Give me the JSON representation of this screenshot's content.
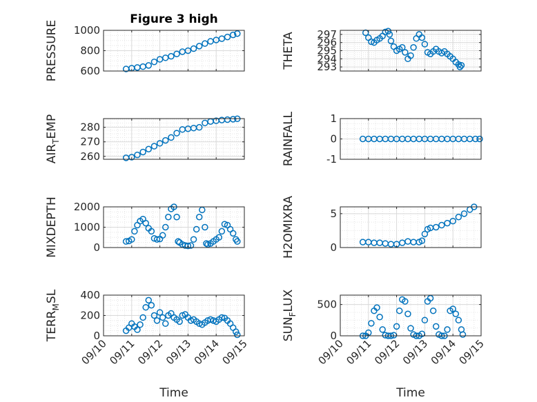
{
  "colors": {
    "marker": "#0072BD",
    "axes": "#262626",
    "grid": "#d9d9d9"
  },
  "chart_data": {
    "type": "scatter",
    "figure_title": "Figure 3 high",
    "x_axis": {
      "label": "Time",
      "range": [
        0,
        5
      ],
      "ticks": [
        0,
        1,
        2,
        3,
        4,
        5
      ],
      "tick_labels": [
        "09/10",
        "09/11",
        "09/12",
        "09/13",
        "09/14",
        "09/15"
      ]
    },
    "marker": "open-circle",
    "panels": [
      {
        "id": "pressure",
        "ylabel": "PRESSURE",
        "title": "Figure 3 high",
        "ylim": [
          600,
          1000
        ],
        "yticks": [
          600,
          800,
          1000
        ],
        "ytick_labels": [
          "600",
          "800",
          "1000"
        ],
        "show_xticklabels": false,
        "series": [
          [
            0.8,
            620
          ],
          [
            1.0,
            628
          ],
          [
            1.2,
            635
          ],
          [
            1.4,
            643
          ],
          [
            1.6,
            655
          ],
          [
            1.8,
            690
          ],
          [
            2.0,
            715
          ],
          [
            2.2,
            730
          ],
          [
            2.4,
            745
          ],
          [
            2.6,
            768
          ],
          [
            2.8,
            790
          ],
          [
            3.0,
            800
          ],
          [
            3.2,
            820
          ],
          [
            3.4,
            845
          ],
          [
            3.6,
            870
          ],
          [
            3.8,
            892
          ],
          [
            4.0,
            905
          ],
          [
            4.2,
            918
          ],
          [
            4.4,
            935
          ],
          [
            4.6,
            955
          ],
          [
            4.75,
            968
          ]
        ]
      },
      {
        "id": "theta",
        "ylabel": "THETA",
        "ylim": [
          292.5,
          297.5
        ],
        "yticks": [
          293,
          294,
          295,
          296,
          297
        ],
        "ytick_labels": [
          "293",
          "294",
          "295",
          "296",
          "297"
        ],
        "show_xticklabels": false,
        "series": [
          [
            0.9,
            297.2
          ],
          [
            1.0,
            296.6
          ],
          [
            1.1,
            296.1
          ],
          [
            1.2,
            296.0
          ],
          [
            1.3,
            296.3
          ],
          [
            1.4,
            296.5
          ],
          [
            1.5,
            296.8
          ],
          [
            1.6,
            297.3
          ],
          [
            1.7,
            297.4
          ],
          [
            1.75,
            297.0
          ],
          [
            1.8,
            296.2
          ],
          [
            1.9,
            295.5
          ],
          [
            2.0,
            295.0
          ],
          [
            2.1,
            295.2
          ],
          [
            2.2,
            295.4
          ],
          [
            2.3,
            294.8
          ],
          [
            2.4,
            294.0
          ],
          [
            2.5,
            294.4
          ],
          [
            2.6,
            295.4
          ],
          [
            2.7,
            296.5
          ],
          [
            2.8,
            297.0
          ],
          [
            2.9,
            296.6
          ],
          [
            3.0,
            295.8
          ],
          [
            3.1,
            294.8
          ],
          [
            3.2,
            294.6
          ],
          [
            3.3,
            294.9
          ],
          [
            3.4,
            295.2
          ],
          [
            3.5,
            294.9
          ],
          [
            3.6,
            294.7
          ],
          [
            3.7,
            294.9
          ],
          [
            3.8,
            294.6
          ],
          [
            3.9,
            294.3
          ],
          [
            4.0,
            294.0
          ],
          [
            4.1,
            293.6
          ],
          [
            4.2,
            293.3
          ],
          [
            4.25,
            293.0
          ],
          [
            4.3,
            293.2
          ]
        ]
      },
      {
        "id": "air_temp",
        "ylabel": "AIR_TEMP",
        "ylim": [
          258,
          286
        ],
        "yticks": [
          260,
          270,
          280
        ],
        "ytick_labels": [
          "260",
          "270",
          "280"
        ],
        "show_xticklabels": false,
        "series": [
          [
            0.8,
            259
          ],
          [
            1.0,
            259.5
          ],
          [
            1.2,
            261
          ],
          [
            1.4,
            263
          ],
          [
            1.6,
            265
          ],
          [
            1.8,
            267
          ],
          [
            2.0,
            269
          ],
          [
            2.2,
            271
          ],
          [
            2.4,
            273
          ],
          [
            2.6,
            276
          ],
          [
            2.8,
            278.5
          ],
          [
            3.0,
            279
          ],
          [
            3.2,
            279.5
          ],
          [
            3.4,
            280
          ],
          [
            3.6,
            283
          ],
          [
            3.8,
            284
          ],
          [
            4.0,
            284.5
          ],
          [
            4.2,
            285
          ],
          [
            4.4,
            285.3
          ],
          [
            4.6,
            285.6
          ],
          [
            4.75,
            285.9
          ]
        ]
      },
      {
        "id": "rainfall",
        "ylabel": "RAINFALL",
        "ylim": [
          -1,
          1
        ],
        "yticks": [
          -1,
          0,
          1
        ],
        "ytick_labels": [
          "-1",
          "0",
          "1"
        ],
        "show_xticklabels": false,
        "series": [
          [
            0.8,
            0
          ],
          [
            1.0,
            0
          ],
          [
            1.2,
            0
          ],
          [
            1.4,
            0
          ],
          [
            1.6,
            0
          ],
          [
            1.8,
            0
          ],
          [
            2.0,
            0
          ],
          [
            2.2,
            0
          ],
          [
            2.4,
            0
          ],
          [
            2.6,
            0
          ],
          [
            2.8,
            0
          ],
          [
            3.0,
            0
          ],
          [
            3.2,
            0
          ],
          [
            3.4,
            0
          ],
          [
            3.6,
            0
          ],
          [
            3.8,
            0
          ],
          [
            4.0,
            0
          ],
          [
            4.2,
            0
          ],
          [
            4.4,
            0
          ],
          [
            4.6,
            0
          ],
          [
            4.8,
            0
          ],
          [
            4.95,
            0
          ]
        ]
      },
      {
        "id": "mixdepth",
        "ylabel": "MIXDEPTH",
        "ylim": [
          0,
          2000
        ],
        "yticks": [
          0,
          1000,
          2000
        ],
        "ytick_labels": [
          "0",
          "1000",
          "2000"
        ],
        "show_xticklabels": false,
        "series": [
          [
            0.8,
            300
          ],
          [
            0.9,
            320
          ],
          [
            1.0,
            400
          ],
          [
            1.1,
            800
          ],
          [
            1.2,
            1100
          ],
          [
            1.3,
            1300
          ],
          [
            1.4,
            1400
          ],
          [
            1.5,
            1200
          ],
          [
            1.6,
            950
          ],
          [
            1.7,
            800
          ],
          [
            1.8,
            450
          ],
          [
            1.9,
            400
          ],
          [
            2.0,
            420
          ],
          [
            2.1,
            600
          ],
          [
            2.2,
            1000
          ],
          [
            2.3,
            1500
          ],
          [
            2.4,
            1900
          ],
          [
            2.5,
            2000
          ],
          [
            2.6,
            1500
          ],
          [
            2.65,
            300
          ],
          [
            2.7,
            250
          ],
          [
            2.8,
            150
          ],
          [
            2.9,
            100
          ],
          [
            3.0,
            80
          ],
          [
            3.1,
            100
          ],
          [
            3.2,
            400
          ],
          [
            3.3,
            900
          ],
          [
            3.4,
            1500
          ],
          [
            3.5,
            1850
          ],
          [
            3.6,
            1000
          ],
          [
            3.65,
            200
          ],
          [
            3.7,
            150
          ],
          [
            3.8,
            200
          ],
          [
            3.9,
            300
          ],
          [
            4.0,
            400
          ],
          [
            4.1,
            500
          ],
          [
            4.2,
            800
          ],
          [
            4.3,
            1150
          ],
          [
            4.4,
            1100
          ],
          [
            4.5,
            900
          ],
          [
            4.6,
            700
          ],
          [
            4.7,
            400
          ],
          [
            4.75,
            300
          ]
        ]
      },
      {
        "id": "h2omixra",
        "ylabel": "H2OMIXRA",
        "ylim": [
          0,
          6
        ],
        "yticks": [
          0,
          5
        ],
        "ytick_labels": [
          "0",
          "5"
        ],
        "show_xticklabels": false,
        "series": [
          [
            0.8,
            0.8
          ],
          [
            1.0,
            0.8
          ],
          [
            1.2,
            0.7
          ],
          [
            1.4,
            0.7
          ],
          [
            1.6,
            0.6
          ],
          [
            1.8,
            0.5
          ],
          [
            2.0,
            0.5
          ],
          [
            2.2,
            0.7
          ],
          [
            2.4,
            0.9
          ],
          [
            2.6,
            0.8
          ],
          [
            2.8,
            0.8
          ],
          [
            2.9,
            1.0
          ],
          [
            3.0,
            2.0
          ],
          [
            3.1,
            2.7
          ],
          [
            3.2,
            2.9
          ],
          [
            3.4,
            3.0
          ],
          [
            3.6,
            3.3
          ],
          [
            3.8,
            3.6
          ],
          [
            4.0,
            3.9
          ],
          [
            4.2,
            4.5
          ],
          [
            4.4,
            5.0
          ],
          [
            4.6,
            5.6
          ],
          [
            4.75,
            6.0
          ]
        ]
      },
      {
        "id": "terr_msl",
        "ylabel": "TERR_MSL",
        "ylim": [
          0,
          400
        ],
        "yticks": [
          0,
          200,
          400
        ],
        "ytick_labels": [
          "0",
          "200",
          "400"
        ],
        "show_xticklabels": true,
        "series": [
          [
            0.8,
            50
          ],
          [
            0.9,
            80
          ],
          [
            1.0,
            120
          ],
          [
            1.1,
            90
          ],
          [
            1.2,
            60
          ],
          [
            1.3,
            110
          ],
          [
            1.4,
            180
          ],
          [
            1.5,
            280
          ],
          [
            1.6,
            350
          ],
          [
            1.7,
            300
          ],
          [
            1.8,
            200
          ],
          [
            1.9,
            150
          ],
          [
            2.0,
            230
          ],
          [
            2.1,
            180
          ],
          [
            2.2,
            120
          ],
          [
            2.3,
            200
          ],
          [
            2.4,
            220
          ],
          [
            2.5,
            180
          ],
          [
            2.6,
            160
          ],
          [
            2.7,
            140
          ],
          [
            2.8,
            200
          ],
          [
            2.9,
            210
          ],
          [
            3.0,
            180
          ],
          [
            3.1,
            150
          ],
          [
            3.2,
            160
          ],
          [
            3.3,
            140
          ],
          [
            3.4,
            120
          ],
          [
            3.5,
            110
          ],
          [
            3.6,
            130
          ],
          [
            3.7,
            150
          ],
          [
            3.8,
            160
          ],
          [
            3.9,
            150
          ],
          [
            4.0,
            140
          ],
          [
            4.1,
            160
          ],
          [
            4.2,
            180
          ],
          [
            4.3,
            175
          ],
          [
            4.4,
            150
          ],
          [
            4.5,
            120
          ],
          [
            4.6,
            80
          ],
          [
            4.7,
            40
          ],
          [
            4.75,
            10
          ]
        ]
      },
      {
        "id": "sun_flux",
        "ylabel": "SUN_FLUX",
        "ylim": [
          0,
          650
        ],
        "yticks": [
          0,
          500
        ],
        "ytick_labels": [
          "0",
          "500"
        ],
        "show_xticklabels": true,
        "series": [
          [
            0.8,
            0
          ],
          [
            0.9,
            0
          ],
          [
            1.0,
            50
          ],
          [
            1.1,
            200
          ],
          [
            1.2,
            400
          ],
          [
            1.3,
            450
          ],
          [
            1.4,
            300
          ],
          [
            1.5,
            100
          ],
          [
            1.6,
            10
          ],
          [
            1.7,
            0
          ],
          [
            1.8,
            0
          ],
          [
            1.9,
            10
          ],
          [
            2.0,
            150
          ],
          [
            2.1,
            400
          ],
          [
            2.2,
            580
          ],
          [
            2.3,
            550
          ],
          [
            2.4,
            350
          ],
          [
            2.5,
            120
          ],
          [
            2.6,
            20
          ],
          [
            2.7,
            0
          ],
          [
            2.8,
            0
          ],
          [
            2.9,
            30
          ],
          [
            3.0,
            250
          ],
          [
            3.1,
            550
          ],
          [
            3.2,
            600
          ],
          [
            3.3,
            400
          ],
          [
            3.4,
            150
          ],
          [
            3.5,
            20
          ],
          [
            3.6,
            0
          ],
          [
            3.7,
            0
          ],
          [
            3.8,
            100
          ],
          [
            3.9,
            400
          ],
          [
            4.0,
            430
          ],
          [
            4.1,
            350
          ],
          [
            4.2,
            250
          ],
          [
            4.3,
            100
          ],
          [
            4.35,
            20
          ]
        ]
      }
    ]
  }
}
